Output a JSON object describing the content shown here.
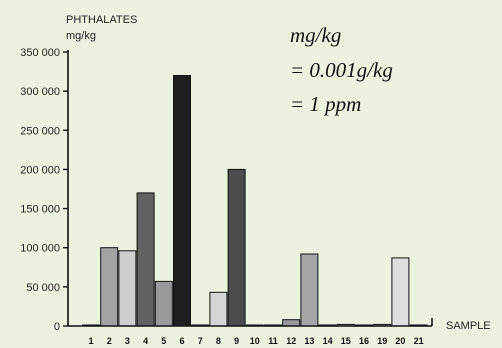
{
  "chart_data": {
    "type": "bar",
    "ylabel_line1": "PHTHALATES",
    "ylabel_line2": "mg/kg",
    "xlabel": "SAMPLE",
    "ylim": [
      0,
      350000
    ],
    "yticks": [
      0,
      50000,
      100000,
      150000,
      200000,
      250000,
      300000,
      350000
    ],
    "ytick_labels": [
      "0",
      "50 000",
      "100 000",
      "150 000",
      "200 000",
      "250 000",
      "300 000",
      "350 000"
    ],
    "categories": [
      "1",
      "2",
      "3",
      "4",
      "5",
      "6",
      "7",
      "8",
      "9",
      "10",
      "11",
      "12",
      "13",
      "14",
      "15",
      "16",
      "19",
      "20",
      "21"
    ],
    "values": [
      0,
      100000,
      96000,
      170000,
      57000,
      320000,
      0,
      43000,
      200000,
      0,
      0,
      8000,
      92000,
      0,
      2000,
      0,
      2000,
      87000,
      0
    ],
    "bar_colors": [
      "#cccccc",
      "#a3a3a3",
      "#cfcfcf",
      "#626262",
      "#9a9a9a",
      "#1e1e1e",
      "#cccccc",
      "#d6d6d6",
      "#4c4c4c",
      "#cccccc",
      "#cccccc",
      "#9a9a9a",
      "#a6a6a6",
      "#cccccc",
      "#b5b5b5",
      "#cccccc",
      "#b5b5b5",
      "#dedede",
      "#cccccc"
    ],
    "annotations": [
      "mg/kg",
      "= 0.001g/kg",
      "= 1 ppm"
    ],
    "grid": false
  }
}
